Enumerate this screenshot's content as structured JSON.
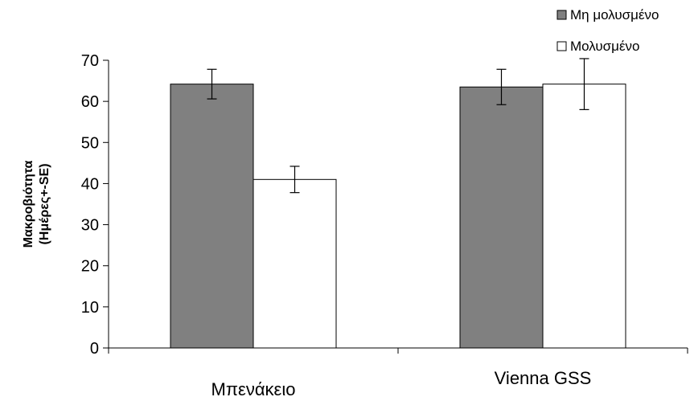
{
  "chart_data": {
    "type": "bar",
    "categories": [
      "Μπενάκειο",
      "Vienna GSS"
    ],
    "series": [
      {
        "name": "Μη μολυσμένο",
        "color": "#808080",
        "values": [
          64.2,
          63.5
        ],
        "errors": [
          3.6,
          4.3
        ]
      },
      {
        "name": "Μολυσμένο",
        "color": "#ffffff",
        "values": [
          41.0,
          64.2
        ],
        "errors": [
          3.2,
          6.2
        ]
      }
    ],
    "title": "",
    "xlabel": "",
    "ylabel": [
      "Μακροβιότητα",
      "(Ημέρες+-SE)"
    ],
    "ylim": [
      0,
      70
    ],
    "yticks": [
      0,
      10,
      20,
      30,
      40,
      50,
      60,
      70
    ],
    "grid": false,
    "legend_position": "top-right"
  }
}
